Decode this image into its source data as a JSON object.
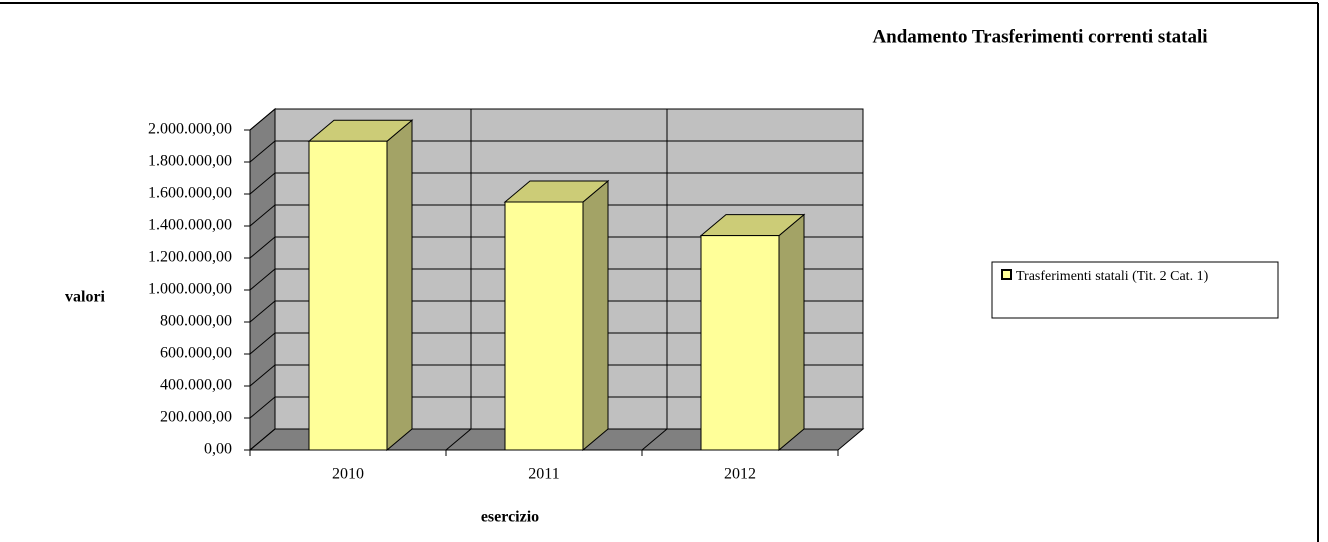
{
  "chart_data": {
    "type": "bar3d",
    "title": "Andamento Trasferimenti correnti statali",
    "x_label": "esercizio",
    "y_label": "valori",
    "categories": [
      "2010",
      "2011",
      "2012"
    ],
    "series": [
      {
        "name": "Trasferimenti  statali (Tit. 2 Cat. 1)",
        "color": "#ffff99",
        "values": [
          1930000,
          1550000,
          1340000
        ]
      }
    ],
    "ylim": [
      0,
      2000000
    ],
    "yticks": [
      {
        "value": 0,
        "label": "0,00"
      },
      {
        "value": 200000,
        "label": "200.000,00"
      },
      {
        "value": 400000,
        "label": "400.000,00"
      },
      {
        "value": 600000,
        "label": "600.000,00"
      },
      {
        "value": 800000,
        "label": "800.000,00"
      },
      {
        "value": 1000000,
        "label": "1.000.000,00"
      },
      {
        "value": 1200000,
        "label": "1.200.000,00"
      },
      {
        "value": 1400000,
        "label": "1.400.000,00"
      },
      {
        "value": 1600000,
        "label": "1.600.000,00"
      },
      {
        "value": 1800000,
        "label": "1.800.000,00"
      },
      {
        "value": 2000000,
        "label": "2.000.000,00"
      }
    ],
    "grid": true,
    "legend": "right"
  }
}
